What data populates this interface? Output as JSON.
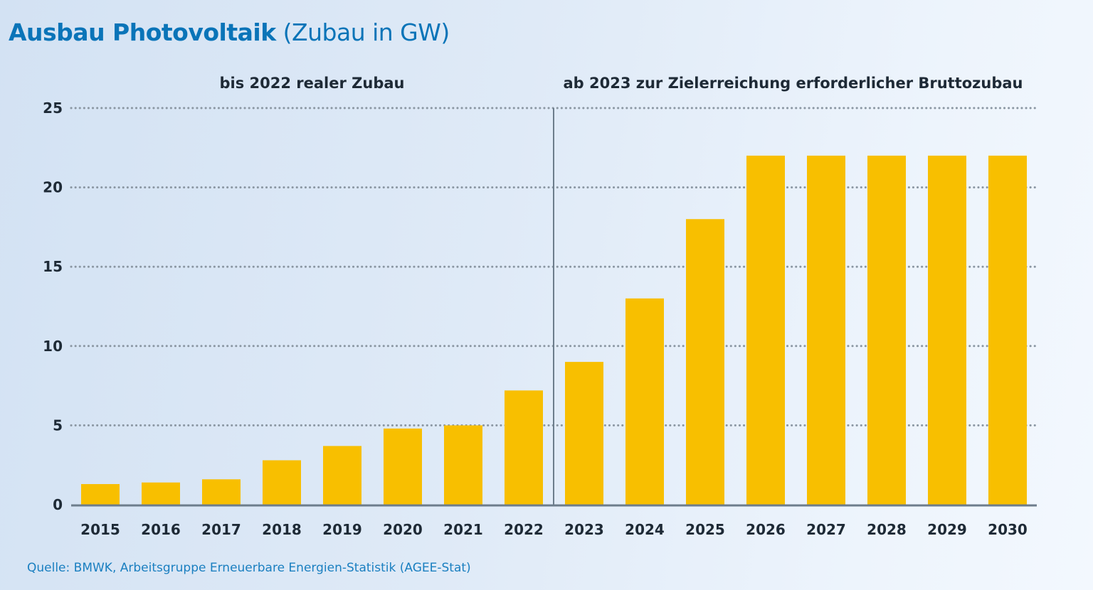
{
  "title": {
    "bold_part": "Ausbau Photovoltaik",
    "regular_part": "(Zubau in GW)"
  },
  "source": "Quelle: BMWK, Arbeitsgruppe Erneuerbare Energien-Statistik (AGEE-Stat)",
  "colors": {
    "bar": "#f8bf00",
    "title": "#0a74b8",
    "axis": "#6d7d8c",
    "grid": "#8a96a2",
    "divider": "#6d7d8c"
  },
  "chart_data": {
    "type": "bar",
    "title": "Ausbau Photovoltaik (Zubau in GW)",
    "xlabel": "",
    "ylabel": "Zubau in GW",
    "ylim": [
      0,
      25
    ],
    "yticks": [
      0,
      5,
      10,
      15,
      20,
      25
    ],
    "grid": "horizontal-dotted",
    "categories": [
      "2015",
      "2016",
      "2017",
      "2018",
      "2019",
      "2020",
      "2021",
      "2022",
      "2023",
      "2024",
      "2025",
      "2026",
      "2027",
      "2028",
      "2029",
      "2030"
    ],
    "values": [
      1.3,
      1.4,
      1.6,
      2.8,
      3.7,
      4.8,
      5.0,
      7.2,
      9,
      13,
      18,
      22,
      22,
      22,
      22,
      22
    ],
    "sections": [
      {
        "label": "bis 2022 realer Zubau",
        "from": "2015",
        "to": "2022"
      },
      {
        "label": "ab 2023 zur Zielerreichung erforderlicher Bruttozubau",
        "from": "2023",
        "to": "2030"
      }
    ],
    "divider_after": "2022"
  }
}
